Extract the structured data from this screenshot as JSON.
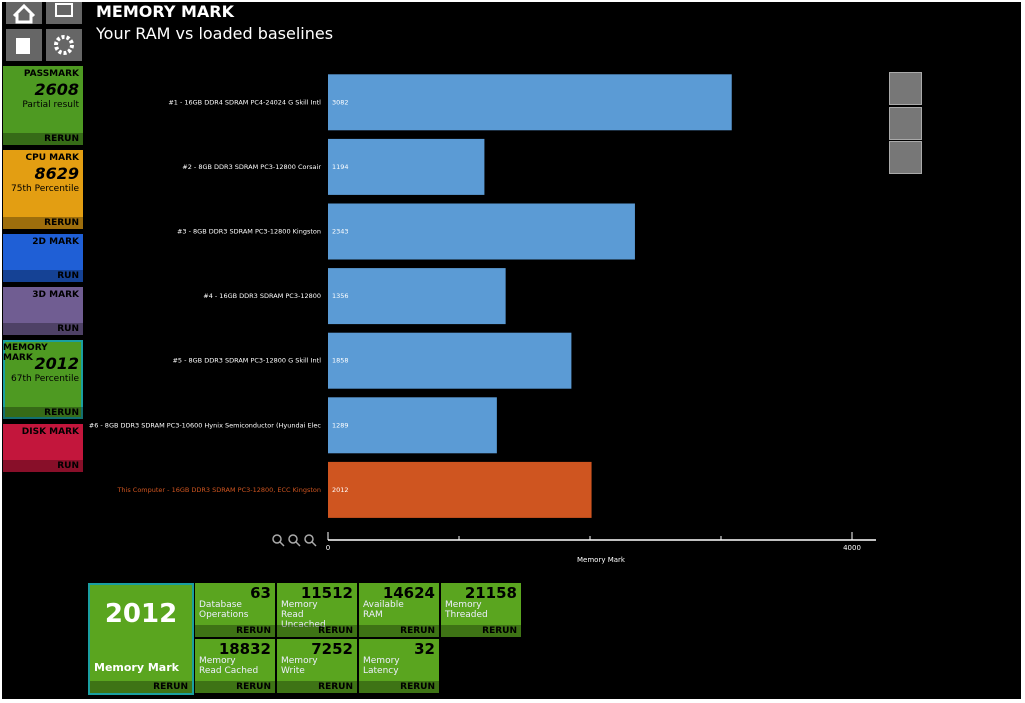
{
  "header": {
    "title": "MEMORY MARK",
    "subtitle": "Your RAM vs loaded baselines"
  },
  "sidebar": {
    "tiles": [
      {
        "label": "PASSMARK",
        "score": 2608,
        "note": "Partial result",
        "action": "RERUN",
        "color": "#4e9a22"
      },
      {
        "label": "CPU MARK",
        "score": 8629,
        "note": "75th Percentile",
        "action": "RERUN",
        "color": "#e39e12"
      },
      {
        "label": "2D MARK",
        "action": "RUN",
        "color": "#1f5fd6"
      },
      {
        "label": "3D MARK",
        "action": "RUN",
        "color": "#705d92"
      },
      {
        "label": "MEMORY MARK",
        "score": 2012,
        "note": "67th Percentile",
        "action": "RERUN",
        "color": "#4e9a22"
      },
      {
        "label": "DISK MARK",
        "action": "RUN",
        "color": "#c3163c"
      }
    ]
  },
  "chart_data": {
    "type": "hbar",
    "categories": [
      "#1 - 16GB DDR4 SDRAM PC4-24024 G Skill Intl",
      "#2 - 8GB DDR3 SDRAM PC3-12800 Corsair",
      "#3 - 8GB DDR3 SDRAM PC3-12800 Kingston",
      "#4 - 16GB DDR3 SDRAM PC3-12800",
      "#5 - 8GB DDR3 SDRAM PC3-12800 G Skill Intl",
      "#6 - 8GB DDR3 SDRAM PC3-10600 Hynix Semiconductor (Hyundai Elec",
      "This Computer - 16GB DDR3 SDRAM PC3-12800, ECC Kingston"
    ],
    "values": [
      3082,
      1194,
      2343,
      1356,
      1858,
      1289,
      2012
    ],
    "color": "#5b9bd5",
    "highlight": {
      "index": 6,
      "color": "#cf5520"
    },
    "xlim": [
      0,
      4000
    ],
    "xticks": [
      0,
      4000
    ],
    "minor_xticks": [
      1000,
      2000,
      3000
    ],
    "xlabel": "Memory Mark"
  },
  "results": {
    "main": {
      "score": 2012,
      "label": "Memory Mark",
      "action": "RERUN"
    },
    "tiles": [
      {
        "value": 63,
        "label": "Database Operations",
        "action": "RERUN"
      },
      {
        "value": 11512,
        "label": "Memory Read Uncached",
        "action": "RERUN"
      },
      {
        "value": 14624,
        "label": "Available RAM",
        "action": "RERUN"
      },
      {
        "value": 21158,
        "label": "Memory Threaded",
        "action": "RERUN"
      },
      {
        "value": 18832,
        "label": "Memory Read Cached",
        "action": "RERUN"
      },
      {
        "value": 7252,
        "label": "Memory Write",
        "action": "RERUN"
      },
      {
        "value": 32,
        "label": "Memory Latency",
        "action": "RERUN"
      }
    ]
  }
}
